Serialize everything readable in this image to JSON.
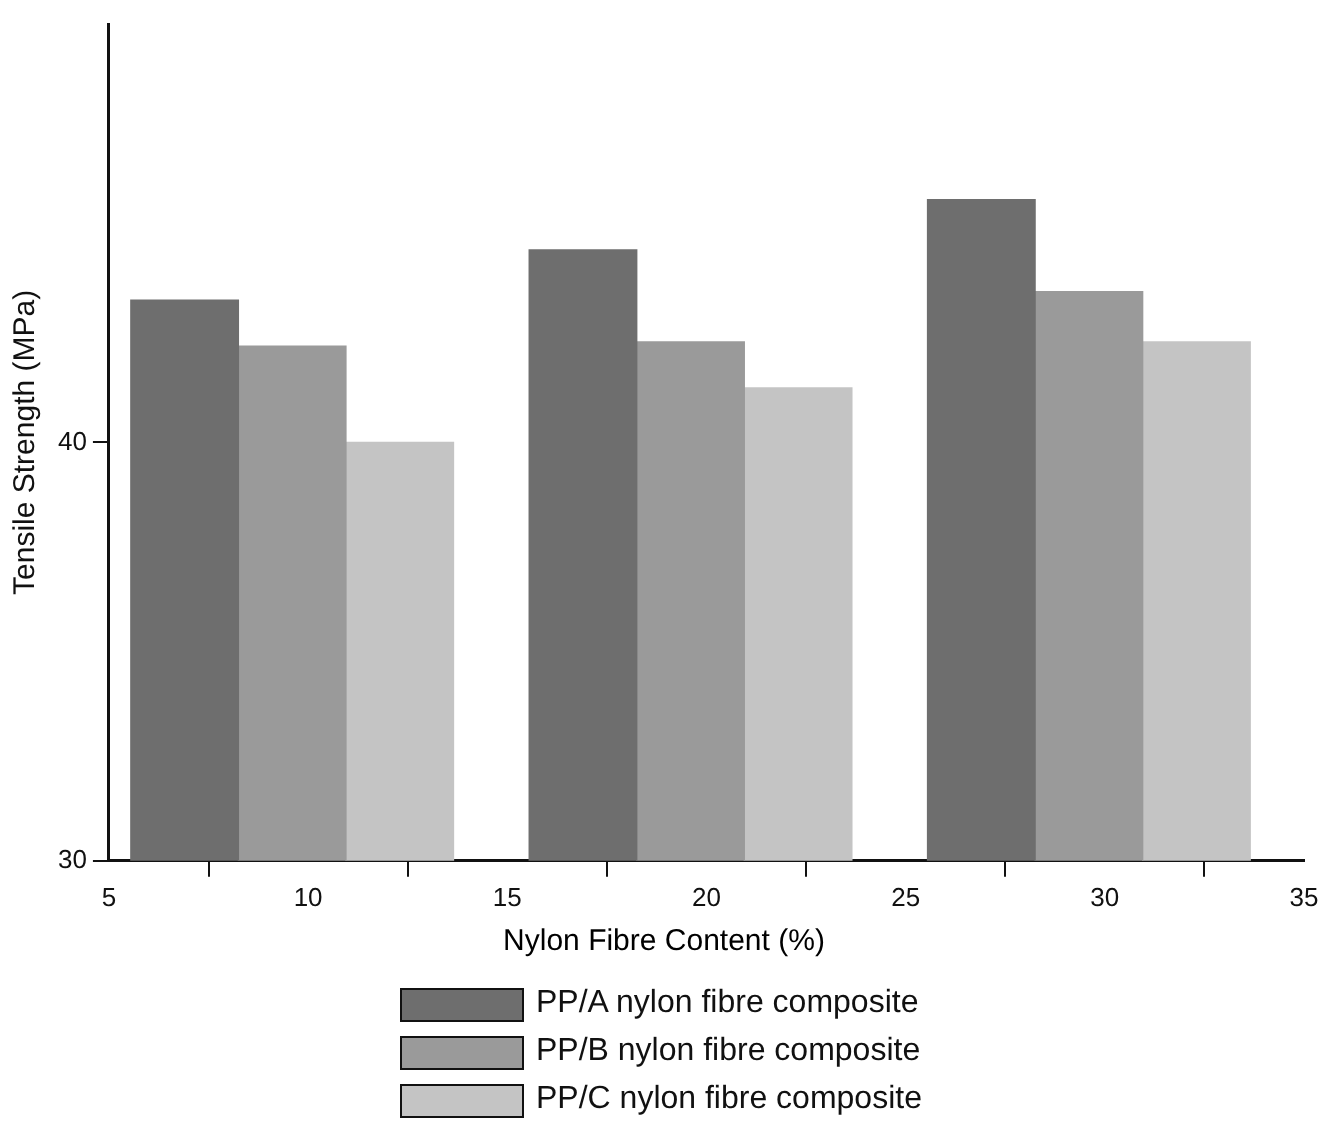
{
  "chart_data": {
    "type": "bar",
    "xlabel": "Nylon Fibre Content (%)",
    "ylabel": "Tensile Strength (MPa)",
    "xlim": [
      5,
      35
    ],
    "xticks": [
      5,
      10,
      15,
      20,
      25,
      30,
      35
    ],
    "ylim": [
      30,
      50
    ],
    "yticks": [
      30,
      40
    ],
    "series": [
      {
        "name": "PP/A nylon fibre composite",
        "color": "#6e6e6e",
        "x": [
          6.9,
          16.9,
          26.9
        ],
        "values": [
          43.4,
          44.6,
          45.8
        ]
      },
      {
        "name": "PP/B nylon fibre composite",
        "color": "#9a9a9a",
        "x": [
          9.6,
          19.6,
          29.6
        ],
        "values": [
          42.3,
          42.4,
          43.6
        ]
      },
      {
        "name": "PP/C nylon fibre composite",
        "color": "#c4c4c4",
        "x": [
          12.3,
          22.3,
          32.3
        ],
        "values": [
          40.0,
          41.3,
          42.4
        ]
      }
    ],
    "grid": false,
    "legend": "bottom"
  }
}
